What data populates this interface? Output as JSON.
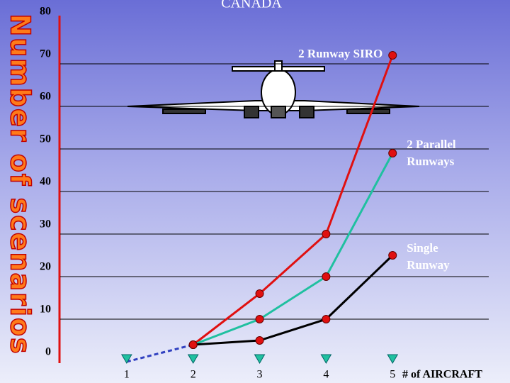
{
  "chart_data": {
    "type": "line",
    "title": "CANADA",
    "ylabel": "Number of scenarios",
    "xlabel": "# of AIRCRAFT",
    "xlim": [
      0,
      6.5
    ],
    "xticks": [
      1,
      2,
      3,
      4,
      5
    ],
    "ylim": [
      0,
      80
    ],
    "yticks": [
      0,
      10,
      20,
      30,
      40,
      50,
      60,
      70,
      80
    ],
    "grid": true,
    "series": [
      {
        "name": "2 Runway SIRO",
        "color": "#e01010",
        "x": [
          2,
          3,
          4,
          5
        ],
        "values": [
          4,
          16,
          30,
          72
        ]
      },
      {
        "name": "2 Parallel Runways",
        "color": "#20c0a0",
        "x": [
          2,
          3,
          4,
          5
        ],
        "values": [
          4,
          10,
          20,
          49
        ]
      },
      {
        "name": "Single Runway",
        "color": "#000000",
        "x": [
          2,
          3,
          4,
          5
        ],
        "values": [
          4,
          5,
          10,
          25
        ]
      }
    ],
    "dashed_line": {
      "color": "#3040c0",
      "x": [
        1,
        2
      ],
      "values": [
        0,
        4
      ]
    },
    "baseline_markers": {
      "color": "#20c0a0",
      "x": [
        1,
        2,
        3,
        4,
        5
      ],
      "values": [
        0,
        0,
        0,
        0,
        0
      ]
    }
  }
}
